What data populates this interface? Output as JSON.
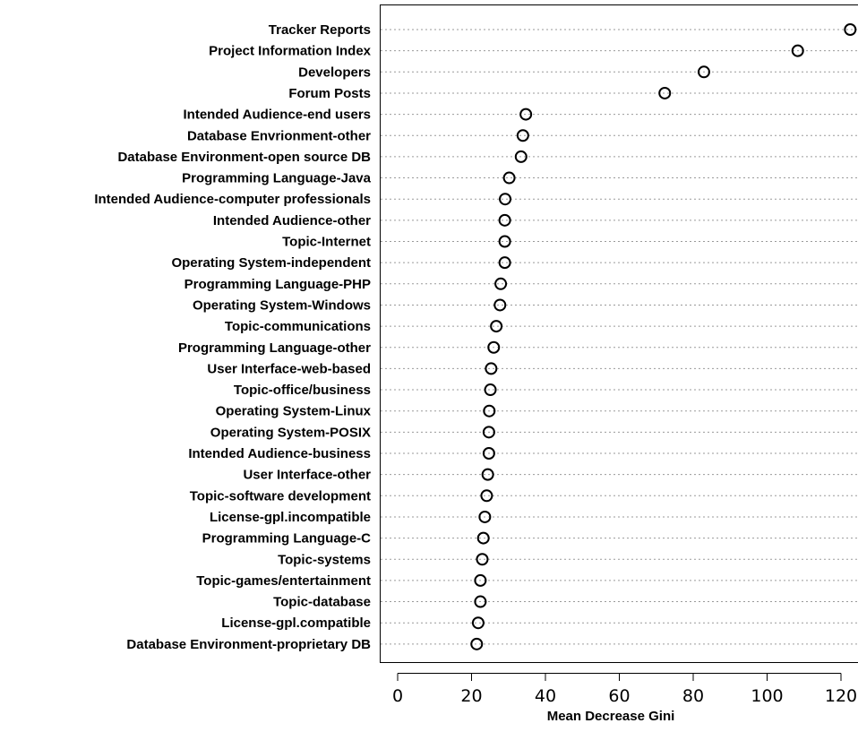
{
  "chart_data": {
    "type": "scatter",
    "xlabel": "Mean Decrease Gini",
    "xlim": [
      -5,
      125
    ],
    "xticks": [
      0,
      20,
      40,
      60,
      80,
      100,
      120
    ],
    "grid_horizontal": true,
    "categories": [
      "Tracker Reports",
      "Project Information Index",
      "Developers",
      "Forum Posts",
      "Intended Audience-end users",
      "Database Envrionment-other",
      "Database Environment-open source DB",
      "Programming Language-Java",
      "Intended Audience-computer  professionals",
      "Intended Audience-other",
      "Topic-Internet",
      "Operating System-independent",
      "Programming Language-PHP",
      "Operating System-Windows",
      "Topic-communications",
      "Programming Language-other",
      "User Interface-web-based",
      "Topic-office/business",
      "Operating System-Linux",
      "Operating System-POSIX",
      "Intended Audience-business",
      "User Interface-other",
      "Topic-software development",
      "License-gpl.incompatible",
      "Programming Language-C",
      "Topic-systems",
      "Topic-games/entertainment",
      "Topic-database",
      "License-gpl.compatible",
      "Database Environment-proprietary DB"
    ],
    "values": [
      122.5,
      108.3,
      82.9,
      72.3,
      34.7,
      33.9,
      33.4,
      30.2,
      29.1,
      29.0,
      29.0,
      29.0,
      27.9,
      27.7,
      26.7,
      26.0,
      25.3,
      25.1,
      24.8,
      24.7,
      24.7,
      24.4,
      24.1,
      23.6,
      23.2,
      22.9,
      22.4,
      22.4,
      21.8,
      21.4
    ]
  }
}
